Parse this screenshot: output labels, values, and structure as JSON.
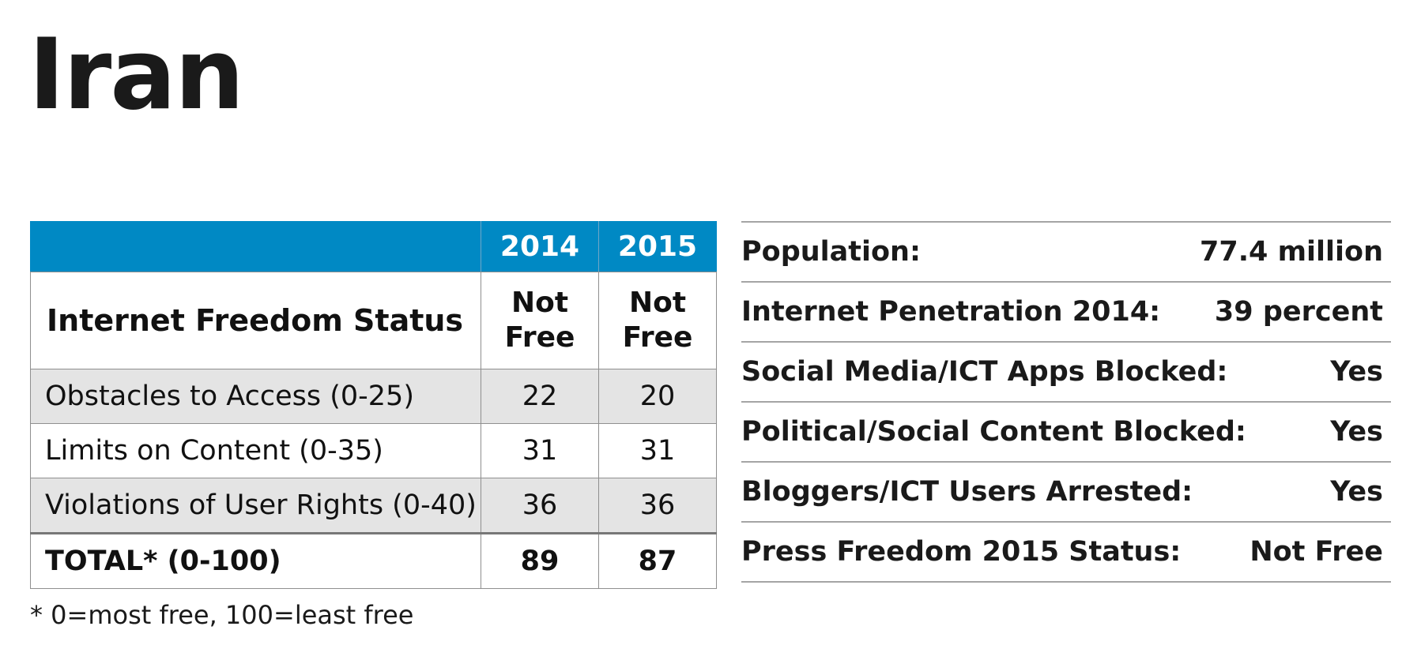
{
  "title": "Iran",
  "score_table": {
    "headers": [
      "",
      "2014",
      "2015"
    ],
    "status": {
      "label": "Internet Freedom Status",
      "values": [
        [
          "Not",
          "Free"
        ],
        [
          "Not",
          "Free"
        ]
      ]
    },
    "categories": [
      {
        "label": "Obstacles to Access (0-25)",
        "values": [
          "22",
          "20"
        ]
      },
      {
        "label": "Limits on Content (0-35)",
        "values": [
          "31",
          "31"
        ]
      },
      {
        "label": "Violations of User Rights (0-40)",
        "values": [
          "36",
          "36"
        ]
      }
    ],
    "total": {
      "label": "TOTAL* (0-100)",
      "values": [
        "89",
        "87"
      ]
    }
  },
  "footnote": "* 0=most free, 100=least free",
  "facts": [
    {
      "label": "Population:",
      "value": "77.4 million"
    },
    {
      "label": "Internet Penetration 2014:",
      "value": "39 percent"
    },
    {
      "label": "Social Media/ICT Apps Blocked:",
      "value": "Yes"
    },
    {
      "label": "Political/Social Content Blocked:",
      "value": "Yes"
    },
    {
      "label": "Bloggers/ICT Users Arrested:",
      "value": "Yes"
    },
    {
      "label": "Press Freedom 2015 Status:",
      "value": "Not Free"
    }
  ],
  "colors": {
    "header_blue": "#0089c4",
    "shaded_row": "#e4e4e4",
    "rule_gray": "#a4a4a4"
  }
}
